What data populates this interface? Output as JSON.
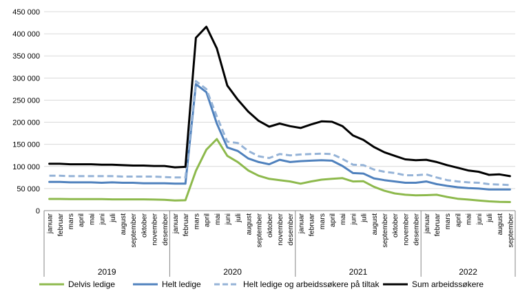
{
  "chart_data": {
    "type": "line",
    "title": "",
    "xlabel": "",
    "ylabel": "",
    "ylim": [
      0,
      450000
    ],
    "yticks": [
      "0",
      "50 000",
      "100 000",
      "150 000",
      "200 000",
      "250 000",
      "300 000",
      "350 000",
      "400 000",
      "450 000"
    ],
    "grid": "horizontal",
    "legend_position": "bottom",
    "years": [
      {
        "label": "2019",
        "months": 12
      },
      {
        "label": "2020",
        "months": 12
      },
      {
        "label": "2021",
        "months": 12
      },
      {
        "label": "2022",
        "months": 9
      }
    ],
    "categories": [
      "januar",
      "februar",
      "mars",
      "april",
      "mai",
      "juni",
      "juli",
      "august",
      "september",
      "oktober",
      "november",
      "desember",
      "januar",
      "februar",
      "mars",
      "april",
      "mai",
      "juni",
      "juli",
      "august",
      "september",
      "oktober",
      "november",
      "desember",
      "januar",
      "februar",
      "mars",
      "april",
      "mai",
      "juni",
      "juli",
      "august",
      "september",
      "oktober",
      "november",
      "desember",
      "januar",
      "februar",
      "mars",
      "april",
      "mai",
      "juni",
      "juli",
      "august",
      "september"
    ],
    "series": [
      {
        "name": "Delvis ledige",
        "color": "#8DB94C",
        "dash": false,
        "values": [
          26500,
          26500,
          26000,
          26000,
          26000,
          26000,
          25500,
          25500,
          25500,
          25500,
          25000,
          24500,
          23000,
          23500,
          90000,
          138000,
          162000,
          124000,
          110000,
          91000,
          79000,
          72000,
          69000,
          66000,
          61000,
          66000,
          70000,
          72000,
          73500,
          66000,
          66500,
          54000,
          45000,
          39000,
          36000,
          34500,
          35000,
          36000,
          31000,
          27000,
          25000,
          23000,
          21000,
          20000,
          19500
        ]
      },
      {
        "name": "Helt ledige",
        "color": "#4F81BD",
        "dash": false,
        "values": [
          65000,
          65000,
          64000,
          64000,
          64000,
          63000,
          64000,
          63000,
          63000,
          62000,
          62000,
          62000,
          61000,
          61000,
          286000,
          268000,
          197000,
          143000,
          135000,
          118000,
          110000,
          105000,
          115000,
          110000,
          112000,
          113000,
          114000,
          113000,
          101000,
          85000,
          84000,
          73000,
          69000,
          66000,
          63000,
          63000,
          66000,
          60000,
          56000,
          53000,
          51000,
          50000,
          48000,
          48000,
          48000
        ]
      },
      {
        "name": "Helt ledige og arbeidssøkere på tiltak",
        "color": "#95B3D7",
        "dash": true,
        "values": [
          79000,
          79000,
          78000,
          78000,
          78000,
          78000,
          78000,
          77000,
          77000,
          77000,
          77000,
          76000,
          75000,
          75000,
          293000,
          275000,
          213000,
          156000,
          153000,
          135000,
          123000,
          119000,
          128000,
          125000,
          127000,
          128000,
          129000,
          128000,
          117000,
          104000,
          103000,
          93000,
          88000,
          85000,
          80000,
          80000,
          82000,
          75000,
          69000,
          66000,
          64000,
          63000,
          60000,
          59000,
          58000
        ]
      },
      {
        "name": "Sum arbeidssøkere",
        "color": "#000000",
        "dash": false,
        "values": [
          106000,
          106000,
          105000,
          105000,
          105000,
          104000,
          104000,
          103000,
          102000,
          102000,
          101000,
          101000,
          98000,
          99000,
          391000,
          416000,
          367000,
          283000,
          251000,
          224000,
          203000,
          190000,
          197000,
          191000,
          187000,
          195000,
          202000,
          201000,
          191000,
          170000,
          160000,
          144000,
          132000,
          124000,
          116000,
          114000,
          115000,
          110000,
          103000,
          97000,
          91000,
          88000,
          81000,
          82000,
          78000
        ]
      }
    ]
  }
}
